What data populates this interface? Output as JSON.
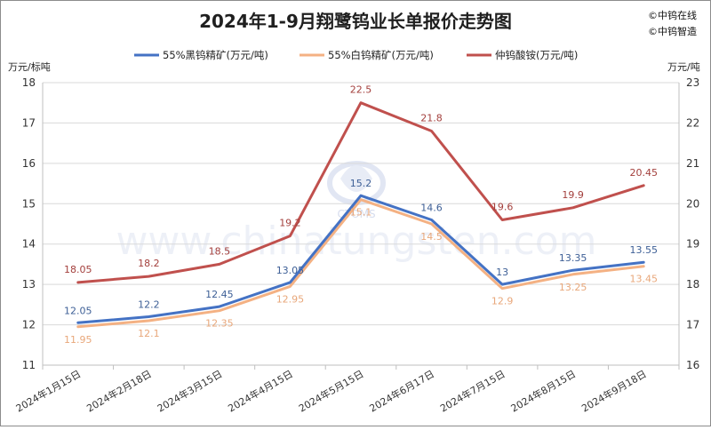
{
  "header": {
    "title": "2024年1-9月翔鹭钨业长单报价走势图",
    "brand_lines": [
      "©中钨在线",
      "©中钨智造"
    ]
  },
  "watermark": {
    "text": "www.chinatungsten.com",
    "logo_text": "CTOMS"
  },
  "colors": {
    "series1": "#4472c4",
    "series2": "#f4b183",
    "series3": "#c0504d"
  },
  "chart_data": {
    "type": "line",
    "title": "2024年1-9月翔鹭钨业长单报价走势图",
    "categories": [
      "2024年1月15日",
      "2024年2月18日",
      "2024年3月15日",
      "2024年4月15日",
      "2024年5月15日",
      "2024年6月17日",
      "2024年7月15日",
      "2024年8月15日",
      "2024年9月18日"
    ],
    "y_left_label": "万元/标吨",
    "y_right_label": "万元/吨",
    "y_left_range": [
      11,
      18
    ],
    "y_right_range": [
      16,
      23
    ],
    "y_left_ticks": [
      "11",
      "12",
      "13",
      "14",
      "15",
      "16",
      "17",
      "18"
    ],
    "y_right_ticks": [
      "16",
      "17",
      "18",
      "19",
      "20",
      "21",
      "22",
      "23"
    ],
    "grid": true,
    "legend_position": "top",
    "series": [
      {
        "name": "55%黑钨精矿(万元/吨)",
        "axis": "left",
        "color": "#4472c4",
        "values": [
          12.05,
          12.2,
          12.45,
          13.05,
          15.2,
          14.6,
          13,
          13.35,
          13.55
        ],
        "labels": [
          "12.05",
          "12.2",
          "12.45",
          "13.05",
          "15.2",
          "14.6",
          "13",
          "13.35",
          "13.55"
        ]
      },
      {
        "name": "55%白钨精矿(万元/吨)",
        "axis": "left",
        "color": "#f4b183",
        "values": [
          11.95,
          12.1,
          12.35,
          12.95,
          15.1,
          14.5,
          12.9,
          13.25,
          13.45
        ],
        "labels": [
          "11.95",
          "12.1",
          "12.35",
          "12.95",
          "15.1",
          "14.5",
          "12.9",
          "13.25",
          "13.45"
        ]
      },
      {
        "name": "仲钨酸铵(万元/吨)",
        "axis": "right",
        "color": "#c0504d",
        "values": [
          18.05,
          18.2,
          18.5,
          19.2,
          22.5,
          21.8,
          19.6,
          19.9,
          20.45
        ],
        "labels": [
          "18.05",
          "18.2",
          "18.5",
          "19.2",
          "22.5",
          "21.8",
          "19.6",
          "19.9",
          "20.45"
        ]
      }
    ]
  }
}
